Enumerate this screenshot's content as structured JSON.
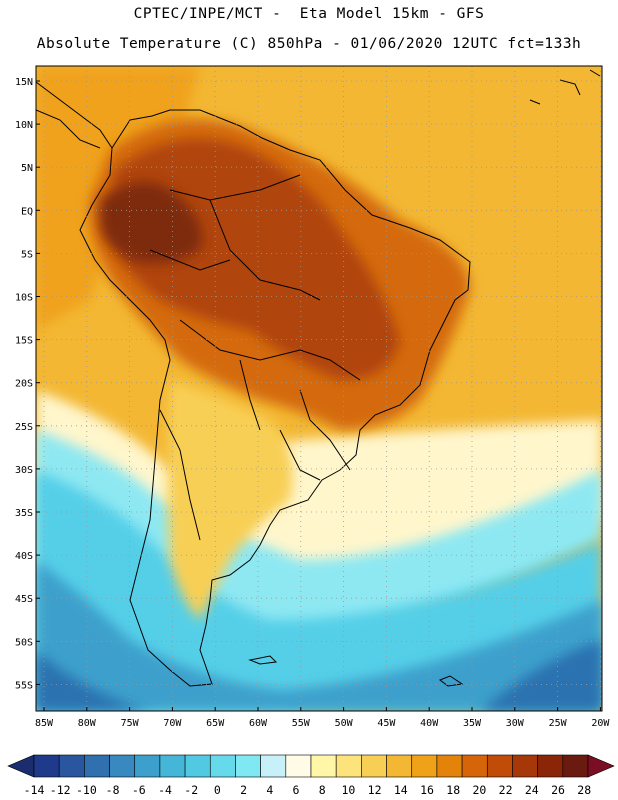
{
  "header": {
    "line1": "CPTEC/INPE/MCT -  Eta Model 15km - GFS",
    "line2": "Absolute Temperature (C) 850hPa - 01/06/2020 12UTC fct=133h"
  },
  "axes": {
    "lat_labels": [
      "15N",
      "10N",
      "5N",
      "EQ",
      "5S",
      "10S",
      "15S",
      "20S",
      "25S",
      "30S",
      "35S",
      "40S",
      "45S",
      "50S",
      "55S"
    ],
    "lon_labels": [
      "85W",
      "80W",
      "75W",
      "70W",
      "65W",
      "60W",
      "55W",
      "50W",
      "45W",
      "40W",
      "35W",
      "30W",
      "25W",
      "20W"
    ]
  },
  "colorbar": {
    "ticks": [
      "-14",
      "-12",
      "-10",
      "-8",
      "-6",
      "-4",
      "-2",
      "0",
      "2",
      "4",
      "6",
      "8",
      "10",
      "12",
      "14",
      "16",
      "18",
      "20",
      "22",
      "24",
      "26",
      "28"
    ],
    "colors": [
      "#1f3a8a",
      "#2a56a0",
      "#3170ae",
      "#3889bf",
      "#3da0cc",
      "#45b6d8",
      "#52c9e2",
      "#66daea",
      "#80e8f2",
      "#c8f0f8",
      "#fffbe6",
      "#fff6a8",
      "#fde37c",
      "#f8cf55",
      "#f3b733",
      "#efa117",
      "#e48309",
      "#d56508",
      "#c04c07",
      "#a63708",
      "#8a2508",
      "#6b1a10"
    ],
    "under_color": "#1b2d6e",
    "over_color": "#7a0f24"
  },
  "map_colors": {
    "ocean_warm": "#f0a21a",
    "ocean_mid": "#f3b733",
    "warm_land": "#d46a10",
    "hot_land": "#b04510",
    "hottest": "#7e2a0c",
    "yellow": "#f8cf55",
    "pale": "#fff6cc",
    "cyan_light": "#8ee8f2",
    "cyan": "#54cfe8",
    "blue": "#3da0cc",
    "deep": "#2a72b0"
  }
}
